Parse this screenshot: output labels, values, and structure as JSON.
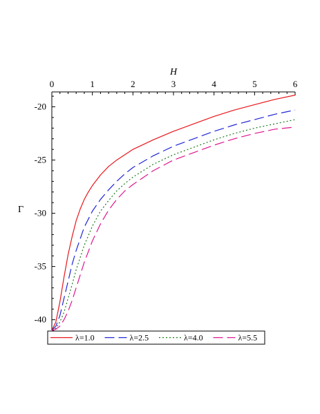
{
  "chart_data": {
    "type": "line",
    "xlabel": "H",
    "ylabel": "Γ",
    "xlim": [
      0,
      6
    ],
    "ylim": [
      -41,
      -18.6
    ],
    "x_axis_position": "top",
    "grid": false,
    "legend_position": "bottom",
    "xticks": [
      0,
      1,
      2,
      3,
      4,
      5,
      6
    ],
    "yticks": [
      -20,
      -25,
      -30,
      -35,
      -40
    ],
    "series": [
      {
        "name": "λ=1.0",
        "color": "#e8161b",
        "dash": "solid",
        "x": [
          0,
          0.1,
          0.2,
          0.3,
          0.4,
          0.5,
          0.6,
          0.7,
          0.8,
          0.9,
          1.0,
          1.2,
          1.4,
          1.6,
          1.8,
          2.0,
          2.5,
          3.0,
          3.5,
          4.0,
          4.5,
          5.0,
          5.5,
          6.0
        ],
        "y": [
          -41,
          -40.2,
          -38.3,
          -36.0,
          -33.9,
          -32.2,
          -30.7,
          -29.6,
          -28.7,
          -28.0,
          -27.4,
          -26.4,
          -25.6,
          -25.0,
          -24.5,
          -24.0,
          -23.1,
          -22.3,
          -21.6,
          -20.9,
          -20.3,
          -19.8,
          -19.3,
          -18.9
        ]
      },
      {
        "name": "λ=2.5",
        "color": "#1f25d6",
        "dash": "longdash",
        "x": [
          0,
          0.1,
          0.2,
          0.3,
          0.4,
          0.5,
          0.6,
          0.8,
          1.0,
          1.2,
          1.4,
          1.6,
          1.8,
          2.0,
          2.5,
          3.0,
          3.5,
          4.0,
          4.5,
          5.0,
          5.5,
          6.0
        ],
        "y": [
          -41,
          -40.6,
          -39.6,
          -38.0,
          -36.4,
          -34.8,
          -33.5,
          -31.3,
          -29.8,
          -28.7,
          -27.8,
          -27.0,
          -26.3,
          -25.7,
          -24.6,
          -23.7,
          -23.0,
          -22.3,
          -21.7,
          -21.2,
          -20.7,
          -20.3
        ]
      },
      {
        "name": "λ=4.0",
        "color": "#1a7a1a",
        "dash": "dot",
        "x": [
          0,
          0.1,
          0.2,
          0.3,
          0.4,
          0.5,
          0.6,
          0.8,
          1.0,
          1.2,
          1.4,
          1.6,
          1.8,
          2.0,
          2.5,
          3.0,
          3.5,
          4.0,
          4.5,
          5.0,
          5.5,
          6.0
        ],
        "y": [
          -41,
          -40.8,
          -40.2,
          -39.3,
          -38.0,
          -36.7,
          -35.3,
          -33.0,
          -31.2,
          -29.8,
          -28.8,
          -27.9,
          -27.2,
          -26.6,
          -25.4,
          -24.5,
          -23.8,
          -23.1,
          -22.5,
          -22.0,
          -21.6,
          -21.2
        ]
      },
      {
        "name": "λ=5.5",
        "color": "#e0158f",
        "dash": "longdash",
        "x": [
          0,
          0.1,
          0.2,
          0.3,
          0.4,
          0.5,
          0.6,
          0.8,
          1.0,
          1.2,
          1.4,
          1.6,
          1.8,
          2.0,
          2.5,
          3.0,
          3.5,
          4.0,
          4.5,
          5.0,
          5.5,
          6.0
        ],
        "y": [
          -41,
          -40.9,
          -40.6,
          -40.0,
          -39.2,
          -38.2,
          -37.0,
          -34.6,
          -32.6,
          -31.0,
          -29.7,
          -28.7,
          -27.9,
          -27.3,
          -26.0,
          -25.0,
          -24.3,
          -23.6,
          -23.0,
          -22.5,
          -22.1,
          -21.9
        ]
      }
    ]
  }
}
